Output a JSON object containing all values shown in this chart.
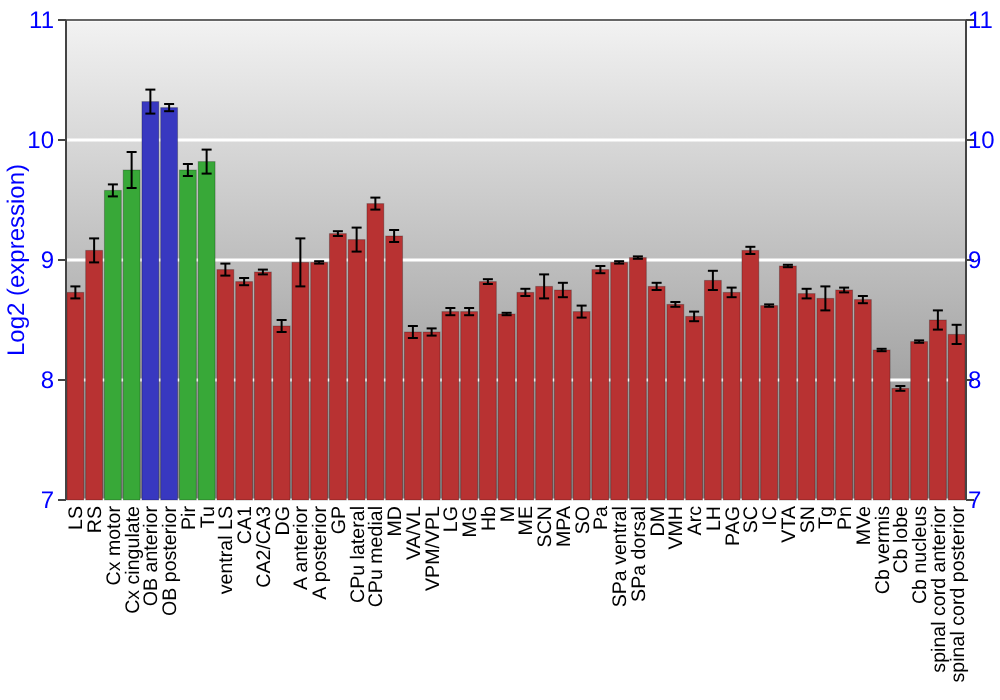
{
  "chart_data": {
    "type": "bar",
    "ylabel": "Log2 (expression)",
    "categories": [
      "LS",
      "RS",
      "Cx motor",
      "Cx cingulate",
      "OB anterior",
      "OB posterior",
      "Pir",
      "Tu",
      "ventral LS",
      "CA1",
      "CA2/CA3",
      "DG",
      "A anterior",
      "A posterior",
      "GP",
      "CPu lateral",
      "CPu medial",
      "MD",
      "VA/VL",
      "VPM/VPL",
      "LG",
      "MG",
      "Hb",
      "M",
      "ME",
      "SCN",
      "MPA",
      "SO",
      "Pa",
      "SPa ventral",
      "SPa dorsal",
      "DM",
      "VMH",
      "Arc",
      "LH",
      "PAG",
      "SC",
      "IC",
      "VTA",
      "SN",
      "Tg",
      "Pn",
      "MVe",
      "Cb vermis",
      "Cb lobe",
      "Cb nucleus",
      "spinal cord anterior",
      "spinal cord posterior"
    ],
    "values": [
      8.73,
      9.08,
      9.58,
      9.75,
      10.32,
      10.27,
      9.75,
      9.82,
      8.92,
      8.82,
      8.9,
      8.45,
      8.98,
      8.98,
      9.22,
      9.17,
      9.47,
      9.2,
      8.4,
      8.4,
      8.57,
      8.57,
      8.82,
      8.55,
      8.73,
      8.78,
      8.75,
      8.57,
      8.92,
      8.98,
      9.02,
      8.78,
      8.63,
      8.53,
      8.83,
      8.73,
      9.08,
      8.62,
      8.95,
      8.72,
      8.68,
      8.75,
      8.67,
      8.25,
      7.93,
      8.32,
      8.5,
      8.38
    ],
    "errors": [
      0.05,
      0.1,
      0.05,
      0.15,
      0.1,
      0.03,
      0.05,
      0.1,
      0.05,
      0.03,
      0.02,
      0.05,
      0.2,
      0.01,
      0.02,
      0.1,
      0.05,
      0.05,
      0.05,
      0.03,
      0.03,
      0.03,
      0.02,
      0.01,
      0.03,
      0.1,
      0.06,
      0.05,
      0.03,
      0.01,
      0.01,
      0.03,
      0.02,
      0.04,
      0.08,
      0.04,
      0.03,
      0.01,
      0.01,
      0.04,
      0.1,
      0.02,
      0.03,
      0.01,
      0.02,
      0.01,
      0.08,
      0.08
    ],
    "colors": [
      "#b83232",
      "#b83232",
      "#38a838",
      "#38a838",
      "#3838c0",
      "#3838c0",
      "#38a838",
      "#38a838",
      "#b83232",
      "#b83232",
      "#b83232",
      "#b83232",
      "#b83232",
      "#b83232",
      "#b83232",
      "#b83232",
      "#b83232",
      "#b83232",
      "#b83232",
      "#b83232",
      "#b83232",
      "#b83232",
      "#b83232",
      "#b83232",
      "#b83232",
      "#b83232",
      "#b83232",
      "#b83232",
      "#b83232",
      "#b83232",
      "#b83232",
      "#b83232",
      "#b83232",
      "#b83232",
      "#b83232",
      "#b83232",
      "#b83232",
      "#b83232",
      "#b83232",
      "#b83232",
      "#b83232",
      "#b83232",
      "#b83232",
      "#b83232",
      "#b83232",
      "#b83232",
      "#b83232",
      "#b83232"
    ],
    "ylim": [
      7,
      11
    ],
    "yticks": [
      7,
      8,
      9,
      10,
      11
    ],
    "y2lim": [
      7,
      11
    ],
    "y2ticks": [
      7,
      8,
      9,
      10,
      11
    ],
    "grid": "y"
  }
}
